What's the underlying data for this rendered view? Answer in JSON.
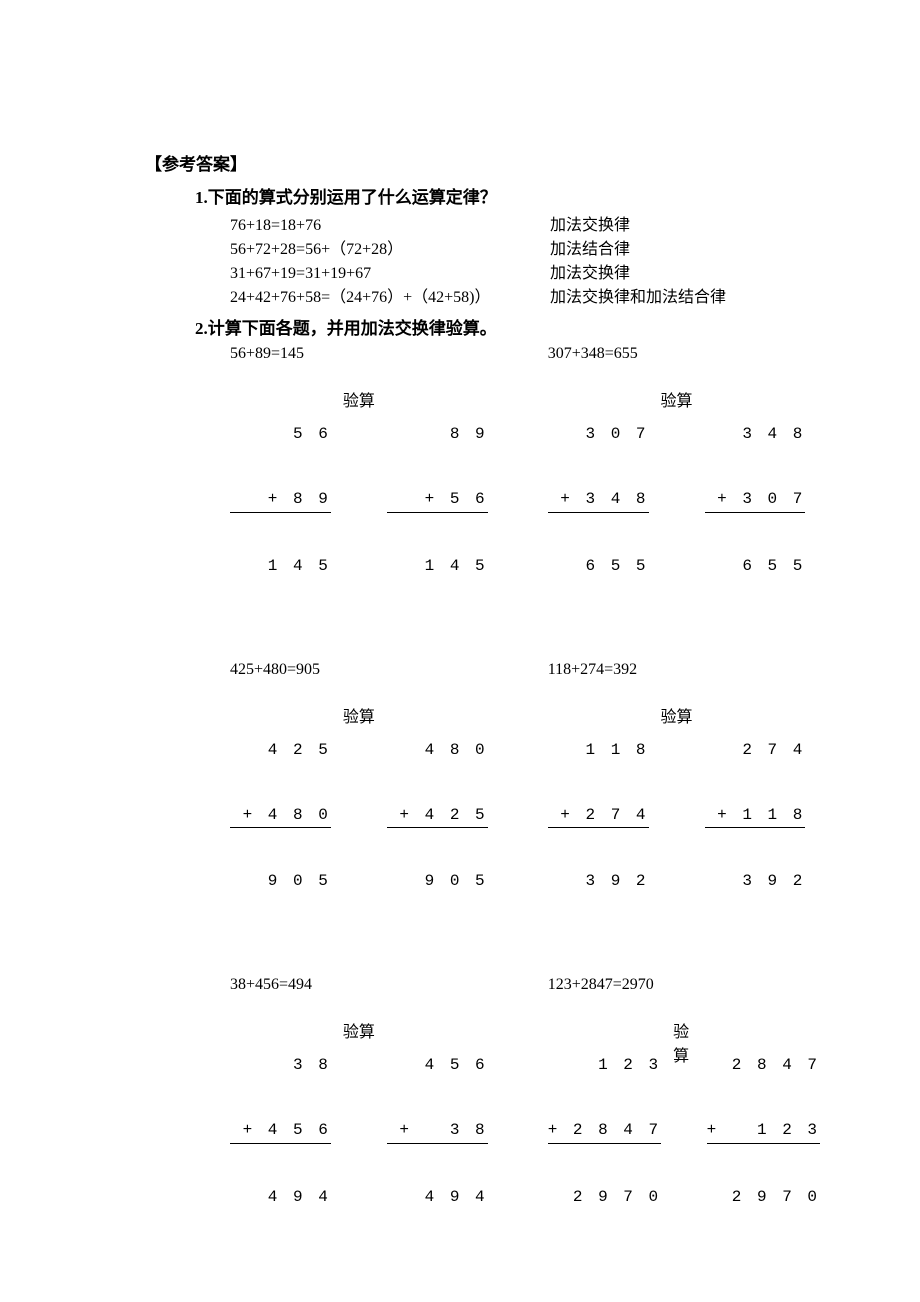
{
  "section_header": "【参考答案】",
  "q1": {
    "title": "1.下面的算式分别运用了什么运算定律？",
    "rows": [
      {
        "eq": "76+18=18+76",
        "ans": "加法交换律"
      },
      {
        "eq": "56+72+28=56+（72+28）",
        "ans": "加法结合律"
      },
      {
        "eq": "31+67+19=31+19+67",
        "ans": "加法交换律"
      },
      {
        "eq": "24+42+76+58=（24+76）+（42+58)）",
        "ans": "加法交换律和加法结合律"
      }
    ]
  },
  "q2": {
    "title": "2.计算下面各题，并用加法交换律验算。",
    "check_label": "验算",
    "problems": [
      {
        "left": {
          "expr": "56+89=145",
          "calc": {
            "top": "  5 6",
            "plus": "+ 8 9",
            "sum": "1 4 5"
          },
          "check": {
            "top": "  8 9",
            "plus": "+ 5 6",
            "sum": "1 4 5"
          }
        },
        "right": {
          "expr": "307+348=655",
          "calc": {
            "top": "  3 0 7",
            "plus": "+ 3 4 8",
            "sum": "  6 5 5"
          },
          "check": {
            "top": "  3 4 8",
            "plus": "+ 3 0 7",
            "sum": "  6 5 5"
          }
        }
      },
      {
        "left": {
          "expr": "425+480=905",
          "calc": {
            "top": "  4 2 5",
            "plus": "+ 4 8 0",
            "sum": "  9 0 5"
          },
          "check": {
            "top": "  4 8 0",
            "plus": "+ 4 2 5",
            "sum": "  9 0 5"
          }
        },
        "right": {
          "expr": "118+274=392",
          "calc": {
            "top": "  1 1 8",
            "plus": "+ 2 7 4",
            "sum": "  3 9 2"
          },
          "check": {
            "top": "  2 7 4",
            "plus": "+ 1 1 8",
            "sum": "  3 9 2"
          }
        }
      },
      {
        "left": {
          "expr": "38+456=494",
          "calc": {
            "top": "    3 8",
            "plus": "+ 4 5 6",
            "sum": "  4 9 4"
          },
          "check": {
            "top": "  4 5 6",
            "plus": "+   3 8",
            "sum": "  4 9 4"
          }
        },
        "right": {
          "expr": "123+2847=2970",
          "calc": {
            "top": "    1 2 3",
            "plus": "+ 2 8 4 7",
            "sum": "  2 9 7 0"
          },
          "check": {
            "top": "  2 8 4 7",
            "plus": "+   1 2 3",
            "sum": "  2 9 7 0"
          }
        }
      }
    ]
  },
  "colors": {
    "background": "#ffffff",
    "text": "#000000",
    "rule_line": "#000000"
  },
  "typography": {
    "body_font": "SimSun",
    "mono_font": "Courier New",
    "title_size_pt": 13,
    "body_size_pt": 12
  }
}
